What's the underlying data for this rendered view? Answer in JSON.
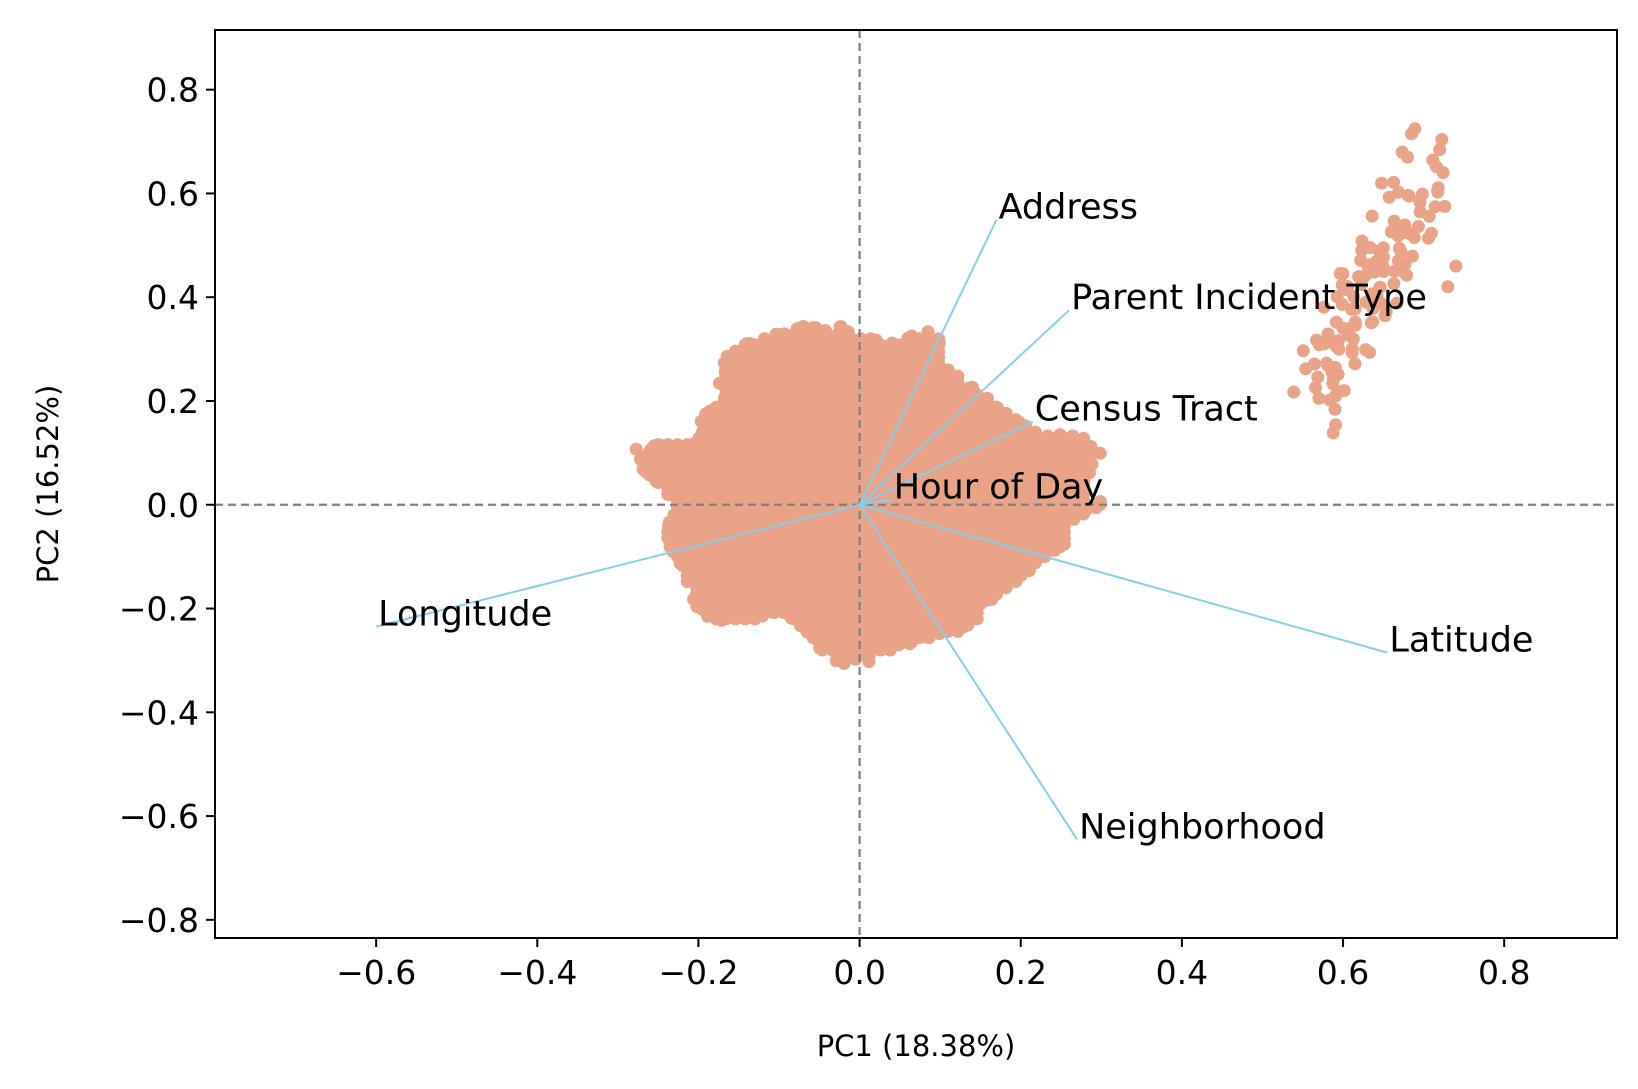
{
  "chart_data": {
    "type": "scatter",
    "xlabel": "PC1 (18.38%)",
    "ylabel": "PC2 (16.52%)",
    "xlim": [
      -0.8,
      0.94
    ],
    "ylim": [
      -0.835,
      0.915
    ],
    "xticks": [
      -0.6,
      -0.4,
      -0.2,
      0.0,
      0.2,
      0.4,
      0.6,
      0.8
    ],
    "yticks": [
      -0.8,
      -0.6,
      -0.4,
      -0.2,
      0.0,
      0.2,
      0.4,
      0.6,
      0.8
    ],
    "xtick_labels": [
      "−0.6",
      "−0.4",
      "−0.2",
      "0.0",
      "0.2",
      "0.4",
      "0.6",
      "0.8"
    ],
    "ytick_labels": [
      "−0.8",
      "−0.6",
      "−0.4",
      "−0.2",
      "0.0",
      "0.2",
      "0.4",
      "0.6",
      "0.8"
    ],
    "grid": false,
    "reference_lines": {
      "x": 0,
      "y": 0,
      "style": "dashed",
      "color": "#808080"
    },
    "point_color": "#e9a386",
    "vector_color": "#87ceeb",
    "point_clusters": [
      {
        "region": "main",
        "x_range": [
          -0.26,
          0.28
        ],
        "y_range": [
          -0.29,
          0.34
        ]
      },
      {
        "region": "outliers",
        "x_range": [
          0.55,
          0.75
        ],
        "y_range": [
          0.2,
          0.72
        ]
      }
    ],
    "loadings": [
      {
        "label": "Address",
        "x": 0.17,
        "y": 0.55
      },
      {
        "label": "Parent Incident Type",
        "x": 0.26,
        "y": 0.375
      },
      {
        "label": "Census Tract",
        "x": 0.215,
        "y": 0.16
      },
      {
        "label": "Hour of Day",
        "x": 0.04,
        "y": 0.01
      },
      {
        "label": "Longitude",
        "x": -0.6,
        "y": -0.235
      },
      {
        "label": "Latitude",
        "x": 0.655,
        "y": -0.285
      },
      {
        "label": "Neighborhood",
        "x": 0.27,
        "y": -0.645
      }
    ]
  }
}
